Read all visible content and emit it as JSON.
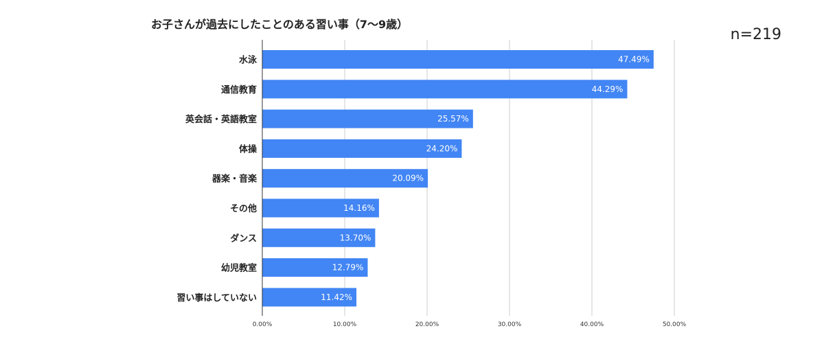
{
  "header": {
    "title": "お子さんが過去にしたことのある習い事（7〜9歳）",
    "sample_size": "n=219"
  },
  "colors": {
    "bar": "#4285f4",
    "grid": "#cccccc",
    "axis": "#333333"
  },
  "chart_data": {
    "type": "bar",
    "orientation": "horizontal",
    "title": "お子さんが過去にしたことのある習い事（7〜9歳）",
    "xlabel": "",
    "ylabel": "",
    "xlim": [
      0,
      50
    ],
    "grid": true,
    "categories": [
      "水泳",
      "通信教育",
      "英会話・英語教室",
      "体操",
      "器楽・音楽",
      "その他",
      "ダンス",
      "幼児教室",
      "習い事はしていない"
    ],
    "values": [
      47.49,
      44.29,
      25.57,
      24.2,
      20.09,
      14.16,
      13.7,
      12.79,
      11.42
    ],
    "value_labels": [
      "47.49%",
      "44.29%",
      "25.57%",
      "24.20%",
      "20.09%",
      "14.16%",
      "13.70%",
      "12.79%",
      "11.42%"
    ],
    "x_ticks": [
      0,
      10,
      20,
      30,
      40,
      50
    ],
    "x_tick_labels": [
      "0.00%",
      "10.00%",
      "20.00%",
      "30.00%",
      "40.00%",
      "50.00%"
    ]
  }
}
